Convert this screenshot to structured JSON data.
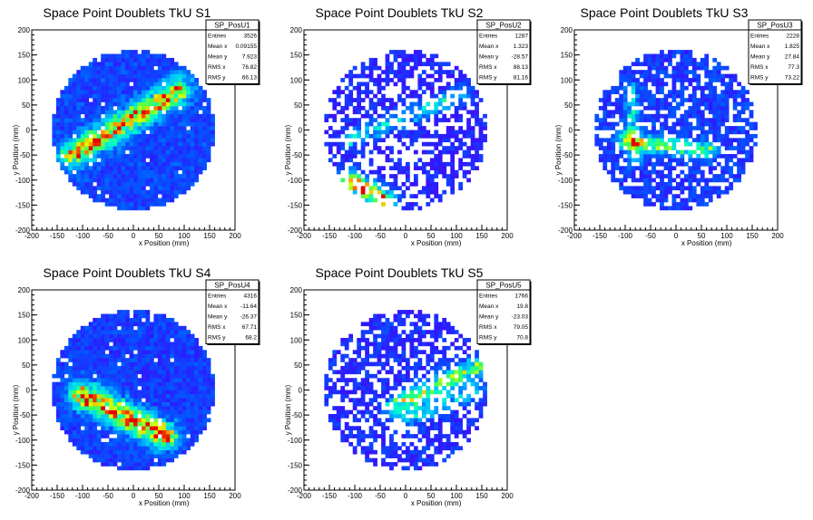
{
  "chart_data": [
    {
      "type": "heatmap",
      "title": "Space Point Doublets TkU S1",
      "xlabel": "x Position (mm)",
      "ylabel": "y Position (mm)",
      "xlim": [
        -200,
        200
      ],
      "ylim": [
        -200,
        200
      ],
      "xticks": [
        -200,
        -150,
        -100,
        -50,
        0,
        50,
        100,
        150,
        200
      ],
      "yticks": [
        -200,
        -150,
        -100,
        -50,
        0,
        50,
        100,
        150,
        200
      ],
      "stats": {
        "name": "SP_PosU1",
        "rows": [
          [
            "Entries",
            "3526"
          ],
          [
            "Mean x",
            "0.09155"
          ],
          [
            "Mean y",
            "7.923"
          ],
          [
            "RMS x",
            "76.82"
          ],
          [
            "RMS y",
            "66.13"
          ]
        ]
      },
      "density": {
        "radius": 160,
        "fill": 0.97,
        "base": 0.2,
        "bands": [
          {
            "x1": -120,
            "y1": -50,
            "x2": 90,
            "y2": 80,
            "w": 18,
            "amp": 0.65
          }
        ]
      }
    },
    {
      "type": "heatmap",
      "title": "Space Point Doublets TkU S2",
      "xlabel": "x Position (mm)",
      "ylabel": "y Position (mm)",
      "xlim": [
        -200,
        200
      ],
      "ylim": [
        -200,
        200
      ],
      "xticks": [
        -200,
        -150,
        -100,
        -50,
        0,
        50,
        100,
        150,
        200
      ],
      "yticks": [
        -200,
        -150,
        -100,
        -50,
        0,
        50,
        100,
        150,
        200
      ],
      "stats": {
        "name": "SP_PosU2",
        "rows": [
          [
            "Entries",
            "1287"
          ],
          [
            "Mean x",
            "1.323"
          ],
          [
            "Mean y",
            "-28.57"
          ],
          [
            "RMS x",
            "88.13"
          ],
          [
            "RMS y",
            "81.16"
          ]
        ]
      },
      "density": {
        "radius": 160,
        "fill": 0.55,
        "base": 0.12,
        "bands": [
          {
            "x1": -110,
            "y1": -100,
            "x2": -40,
            "y2": -140,
            "w": 14,
            "amp": 0.85
          },
          {
            "x1": -110,
            "y1": -20,
            "x2": 110,
            "y2": 70,
            "w": 12,
            "amp": 0.35
          }
        ]
      }
    },
    {
      "type": "heatmap",
      "title": "Space Point Doublets TkU S3",
      "xlabel": "x Position (mm)",
      "ylabel": "y Position (mm)",
      "xlim": [
        -200,
        200
      ],
      "ylim": [
        -200,
        200
      ],
      "xticks": [
        -200,
        -150,
        -100,
        -50,
        0,
        50,
        100,
        150,
        200
      ],
      "yticks": [
        -200,
        -150,
        -100,
        -50,
        0,
        50,
        100,
        150,
        200
      ],
      "stats": {
        "name": "SP_PosU3",
        "rows": [
          [
            "Entries",
            "2228"
          ],
          [
            "Mean x",
            "1.825"
          ],
          [
            "Mean y",
            "27.84"
          ],
          [
            "RMS x",
            "77.3"
          ],
          [
            "RMS y",
            "73.22"
          ]
        ]
      },
      "density": {
        "radius": 160,
        "fill": 0.75,
        "base": 0.18,
        "bands": [
          {
            "x1": -100,
            "y1": -20,
            "x2": 60,
            "y2": -40,
            "w": 12,
            "amp": 0.5
          },
          {
            "x1": -90,
            "y1": 80,
            "x2": -80,
            "y2": -60,
            "w": 10,
            "amp": 0.3
          }
        ]
      }
    },
    {
      "type": "heatmap",
      "title": "Space Point Doublets TkU S4",
      "xlabel": "x Position (mm)",
      "ylabel": "y Position (mm)",
      "xlim": [
        -200,
        200
      ],
      "ylim": [
        -200,
        200
      ],
      "xticks": [
        -200,
        -150,
        -100,
        -50,
        0,
        50,
        100,
        150,
        200
      ],
      "yticks": [
        -200,
        -150,
        -100,
        -50,
        0,
        50,
        100,
        150,
        200
      ],
      "stats": {
        "name": "SP_PosU4",
        "rows": [
          [
            "Entries",
            "4316"
          ],
          [
            "Mean x",
            "-11.64"
          ],
          [
            "Mean y",
            "-26.37"
          ],
          [
            "RMS x",
            "67.71"
          ],
          [
            "RMS y",
            "68.2"
          ]
        ]
      },
      "density": {
        "radius": 160,
        "fill": 0.97,
        "base": 0.18,
        "bands": [
          {
            "x1": -100,
            "y1": -10,
            "x2": 60,
            "y2": -90,
            "w": 20,
            "amp": 0.7
          }
        ]
      }
    },
    {
      "type": "heatmap",
      "title": "Space Point Doublets TkU S5",
      "xlabel": "x Position (mm)",
      "ylabel": "y Position (mm)",
      "xlim": [
        -200,
        200
      ],
      "ylim": [
        -200,
        200
      ],
      "xticks": [
        -200,
        -150,
        -100,
        -50,
        0,
        50,
        100,
        150,
        200
      ],
      "yticks": [
        -200,
        -150,
        -100,
        -50,
        0,
        50,
        100,
        150,
        200
      ],
      "stats": {
        "name": "SP_PosU5",
        "rows": [
          [
            "Entries",
            "1766"
          ],
          [
            "Mean x",
            "19.8"
          ],
          [
            "Mean y",
            "-23.03"
          ],
          [
            "RMS x",
            "79.05"
          ],
          [
            "RMS y",
            "70.8"
          ]
        ]
      },
      "density": {
        "radius": 160,
        "fill": 0.62,
        "base": 0.14,
        "bands": [
          {
            "x1": -20,
            "y1": -30,
            "x2": 150,
            "y2": 50,
            "w": 14,
            "amp": 0.55
          },
          {
            "x1": 0,
            "y1": -60,
            "x2": 140,
            "y2": 0,
            "w": 12,
            "amp": 0.3
          }
        ]
      }
    }
  ]
}
